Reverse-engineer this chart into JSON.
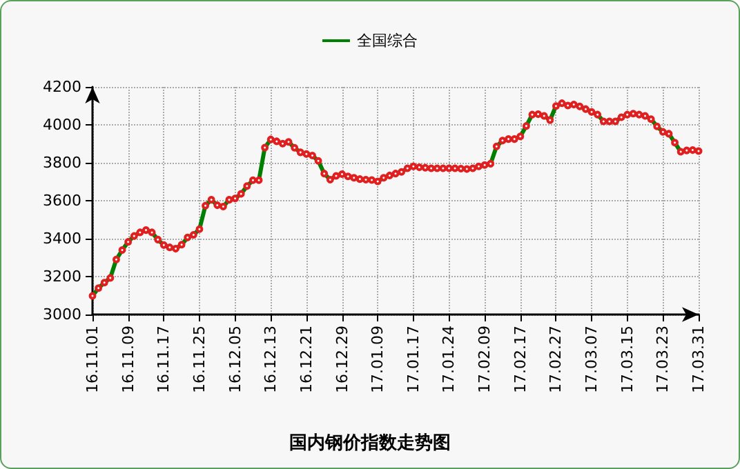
{
  "chart_data": {
    "type": "line",
    "title": "国内钢价指数走势图",
    "categories": [
      "16.11.01",
      null,
      null,
      null,
      null,
      null,
      "16.11.09",
      null,
      null,
      null,
      null,
      null,
      "16.11.17",
      null,
      null,
      null,
      null,
      null,
      "16.11.25",
      null,
      null,
      null,
      null,
      null,
      "16.12.05",
      null,
      null,
      null,
      null,
      null,
      "16.12.13",
      null,
      null,
      null,
      null,
      null,
      "16.12.21",
      null,
      null,
      null,
      null,
      null,
      "16.12.29",
      null,
      null,
      null,
      null,
      null,
      "17.01.09",
      null,
      null,
      null,
      null,
      null,
      "17.01.17",
      null,
      null,
      null,
      null,
      null,
      "17.01.24",
      null,
      null,
      null,
      null,
      null,
      "17.02.09",
      null,
      null,
      null,
      null,
      null,
      "17.02.17",
      null,
      null,
      null,
      null,
      null,
      "17.02.27",
      null,
      null,
      null,
      null,
      null,
      "17.03.07",
      null,
      null,
      null,
      null,
      null,
      "17.03.15",
      null,
      null,
      null,
      null,
      null,
      "17.03.23",
      null,
      null,
      null,
      null,
      null,
      "17.03.31"
    ],
    "series": [
      {
        "name": "全国综合",
        "color": "#008000",
        "values": [
          3098,
          3139,
          3168,
          3193,
          3290,
          3340,
          3383,
          3414,
          3433,
          3445,
          3433,
          3395,
          3366,
          3354,
          3347,
          3368,
          3406,
          3420,
          3450,
          3574,
          3605,
          3576,
          3569,
          3605,
          3612,
          3636,
          3677,
          3708,
          3708,
          3880,
          3923,
          3913,
          3901,
          3910,
          3879,
          3855,
          3846,
          3838,
          3810,
          3743,
          3711,
          3731,
          3740,
          3728,
          3721,
          3714,
          3711,
          3709,
          3702,
          3721,
          3733,
          3743,
          3752,
          3771,
          3781,
          3776,
          3774,
          3771,
          3771,
          3771,
          3771,
          3771,
          3769,
          3767,
          3771,
          3781,
          3788,
          3795,
          3886,
          3917,
          3925,
          3925,
          3939,
          3994,
          4054,
          4056,
          4047,
          4025,
          4099,
          4114,
          4102,
          4107,
          4097,
          4083,
          4068,
          4054,
          4018,
          4018,
          4018,
          4040,
          4054,
          4059,
          4054,
          4047,
          4030,
          3992,
          3963,
          3953,
          3906,
          3858,
          3865,
          3867,
          3862
        ]
      }
    ],
    "ylim": [
      3000,
      4200
    ],
    "yticks": [
      3000,
      3200,
      3400,
      3600,
      3800,
      4000,
      4200
    ],
    "grid": true,
    "legend": "top",
    "marker": "circle",
    "line_style": "solid"
  }
}
